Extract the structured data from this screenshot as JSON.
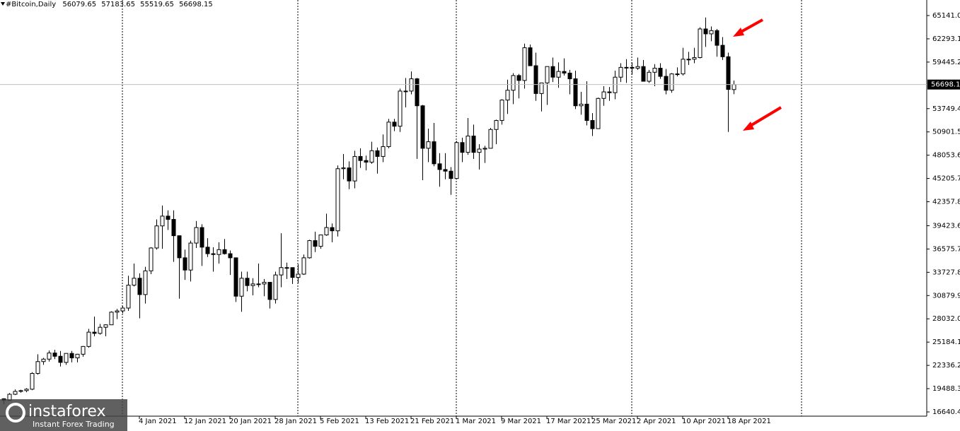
{
  "chart_data": {
    "type": "candlestick",
    "title": "#Bitcoin,Daily",
    "up_color": "#ffffff",
    "down_color": "#000000",
    "categories": [
      null,
      null,
      null,
      null,
      null,
      null,
      null,
      null,
      null,
      null,
      null,
      null,
      null,
      null,
      null,
      null,
      null,
      null,
      null,
      null,
      null,
      null,
      null,
      null,
      "4 Jan 2021",
      null,
      null,
      null,
      null,
      null,
      null,
      null,
      "12 Jan 2021",
      null,
      null,
      null,
      null,
      null,
      null,
      null,
      "20 Jan 2021",
      null,
      null,
      null,
      null,
      null,
      null,
      null,
      "28 Jan 2021",
      null,
      null,
      null,
      null,
      null,
      null,
      null,
      "5 Feb 2021",
      null,
      null,
      null,
      null,
      null,
      null,
      null,
      "13 Feb 2021",
      null,
      null,
      null,
      null,
      null,
      null,
      null,
      "21 Feb 2021",
      null,
      null,
      null,
      null,
      null,
      null,
      null,
      "1 Mar 2021",
      null,
      null,
      null,
      null,
      null,
      null,
      null,
      "9 Mar 2021",
      null,
      null,
      null,
      null,
      null,
      null,
      null,
      "17 Mar 2021",
      null,
      null,
      null,
      null,
      null,
      null,
      null,
      "25 Mar 2021",
      null,
      null,
      null,
      null,
      null,
      null,
      null,
      "2 Apr 2021",
      null,
      null,
      null,
      null,
      null,
      null,
      null,
      "10 Apr 2021",
      null,
      null,
      null,
      null,
      null,
      null,
      null,
      "18 Apr 2021",
      null
    ],
    "open": [
      18250,
      18050,
      18800,
      19150,
      19250,
      19420,
      21350,
      22800,
      23100,
      23850,
      23450,
      22700,
      23800,
      23250,
      23700,
      24650,
      26400,
      26250,
      27000,
      27300,
      28850,
      29000,
      29350,
      32150,
      33000,
      31000,
      33900,
      36700,
      39400,
      40600,
      40200,
      38200,
      35500,
      34000,
      37300,
      39200,
      36800,
      36000,
      35900,
      36500,
      36000,
      35500,
      30800,
      33000,
      32100,
      32300,
      32300,
      32500,
      30400,
      33400,
      34300,
      34300,
      33100,
      33500,
      35500,
      37600,
      36900,
      38300,
      39200,
      38800,
      46400,
      46500,
      44900,
      47900,
      47400,
      47200,
      48600,
      47900,
      49100,
      52100,
      51600,
      55900,
      55900,
      57400,
      54100,
      48900,
      49700,
      47000,
      46300,
      46100,
      45200,
      49600,
      48400,
      50400,
      48400,
      48800,
      48900,
      51200,
      52300,
      54800,
      56000,
      57800,
      57200,
      61200,
      59000,
      55600,
      56900,
      58900,
      57600,
      58300,
      58100,
      57400,
      54100,
      54300,
      52300,
      51300,
      55000,
      55800,
      55700,
      57600,
      58800,
      58800,
      58700,
      58900,
      57100,
      58200,
      58700,
      57700,
      56000,
      58000,
      58000,
      59800,
      59800,
      60000,
      63500,
      62900,
      63300,
      61500,
      60100,
      56079.65
    ],
    "high": [
      18300,
      18950,
      19400,
      19350,
      19550,
      21500,
      23700,
      23250,
      24150,
      24250,
      24100,
      23800,
      24100,
      23750,
      24700,
      26800,
      28300,
      27400,
      27350,
      28950,
      29250,
      29600,
      33300,
      34800,
      33600,
      34400,
      36800,
      40200,
      41900,
      41300,
      41300,
      38200,
      36500,
      37600,
      40000,
      39600,
      37900,
      36800,
      37400,
      37800,
      36400,
      35500,
      33800,
      33800,
      33000,
      34800,
      32900,
      32500,
      33800,
      38500,
      34900,
      34300,
      34700,
      35900,
      37700,
      38700,
      38300,
      40900,
      39700,
      46800,
      48200,
      47300,
      48600,
      48900,
      48000,
      49700,
      49000,
      50600,
      52500,
      52500,
      56200,
      57500,
      58300,
      57500,
      54200,
      51300,
      52000,
      48300,
      48300,
      46600,
      49800,
      50200,
      52600,
      51800,
      49400,
      49200,
      51400,
      52400,
      54900,
      57300,
      58100,
      58000,
      61700,
      61600,
      60600,
      56900,
      58900,
      60000,
      59400,
      59900,
      58500,
      58400,
      55800,
      57100,
      53200,
      55100,
      56500,
      56400,
      58400,
      59300,
      59800,
      59400,
      60000,
      59700,
      58500,
      59200,
      59300,
      58600,
      58100,
      58800,
      61200,
      60700,
      61200,
      63700,
      64900,
      63800,
      63500,
      62500,
      60600,
      57183.65
    ],
    "low": [
      17600,
      18000,
      18700,
      19000,
      19050,
      19300,
      21200,
      22400,
      22800,
      23100,
      22200,
      22400,
      22700,
      22700,
      23400,
      24500,
      25900,
      26100,
      25900,
      27300,
      28000,
      28700,
      29000,
      32000,
      28100,
      29900,
      33500,
      36500,
      36600,
      38900,
      35000,
      30500,
      32800,
      32600,
      36700,
      34500,
      35600,
      33800,
      34800,
      35900,
      33400,
      30100,
      28900,
      31400,
      30900,
      31900,
      30800,
      29300,
      29900,
      31900,
      32900,
      32300,
      32400,
      33400,
      35400,
      36200,
      36600,
      38200,
      37400,
      38100,
      45100,
      43900,
      44000,
      46500,
      46200,
      47000,
      45800,
      47200,
      48900,
      51000,
      50900,
      53900,
      55500,
      47600,
      45000,
      47200,
      46700,
      44200,
      45100,
      43200,
      45100,
      47200,
      48100,
      47600,
      46300,
      47100,
      48900,
      49400,
      51800,
      53100,
      54300,
      55000,
      56200,
      59000,
      54700,
      53400,
      54200,
      57000,
      56300,
      57800,
      55500,
      53700,
      53000,
      51700,
      50400,
      51300,
      54100,
      54700,
      54900,
      57000,
      56900,
      57900,
      58500,
      57100,
      56900,
      56500,
      57400,
      55500,
      55700,
      57700,
      57800,
      59100,
      59300,
      59900,
      61300,
      62000,
      60100,
      59700,
      50900,
      55519.65
    ],
    "close": [
      18050,
      18800,
      19150,
      19250,
      19420,
      21350,
      22800,
      23100,
      23850,
      23450,
      22700,
      23800,
      23250,
      23700,
      24650,
      26400,
      26250,
      27000,
      27300,
      28850,
      29000,
      29350,
      32150,
      33000,
      31000,
      33900,
      36700,
      39400,
      40600,
      40200,
      38200,
      35500,
      34000,
      37300,
      39200,
      36800,
      36000,
      35900,
      36500,
      36000,
      35500,
      30800,
      33000,
      32100,
      32300,
      32300,
      32500,
      30400,
      33400,
      34300,
      34300,
      33100,
      33500,
      35500,
      37600,
      36900,
      38300,
      39200,
      38800,
      46400,
      46500,
      44900,
      47900,
      47400,
      47200,
      48600,
      47900,
      49100,
      52100,
      51600,
      55900,
      55900,
      57400,
      54100,
      48900,
      49700,
      47000,
      46300,
      46100,
      45200,
      49600,
      48400,
      50400,
      48400,
      48800,
      48900,
      51200,
      52300,
      54800,
      56000,
      57800,
      57200,
      61200,
      59000,
      55600,
      56900,
      58900,
      57600,
      58300,
      58100,
      57400,
      54100,
      54300,
      52300,
      51300,
      55000,
      55800,
      55700,
      57600,
      58800,
      58800,
      58700,
      58900,
      57100,
      58200,
      58700,
      57700,
      56000,
      58000,
      58000,
      59800,
      59800,
      60000,
      63500,
      62900,
      63300,
      61500,
      60100,
      56100,
      56698.15
    ],
    "ylim": [
      16121.7,
      67043.0
    ],
    "yticks": [
      {
        "value": 65141,
        "label": "65141.00"
      },
      {
        "value": 62293.1,
        "label": "62293.10"
      },
      {
        "value": 59445.2,
        "label": "59445.20"
      },
      {
        "value": 53749.4,
        "label": "53749.40"
      },
      {
        "value": 50901.5,
        "label": "50901.50"
      },
      {
        "value": 48053.6,
        "label": "48053.60"
      },
      {
        "value": 45205.7,
        "label": "45205.70"
      },
      {
        "value": 42357.8,
        "label": "42357.80"
      },
      {
        "value": 39423.6,
        "label": "39423.60"
      },
      {
        "value": 36575.7,
        "label": "36575.70"
      },
      {
        "value": 33727.8,
        "label": "33727.80"
      },
      {
        "value": 30879.9,
        "label": "30879.90"
      },
      {
        "value": 28032,
        "label": "28032.00"
      },
      {
        "value": 25184.1,
        "label": "25184.10"
      },
      {
        "value": 22336.2,
        "label": "22336.20"
      },
      {
        "value": 19488.3,
        "label": "19488.30"
      },
      {
        "value": 16640.4,
        "label": "16640.40"
      }
    ],
    "grid": false
  },
  "watermark": {
    "brand": "instaforex",
    "tagline": "Instant Forex Trading"
  }
}
